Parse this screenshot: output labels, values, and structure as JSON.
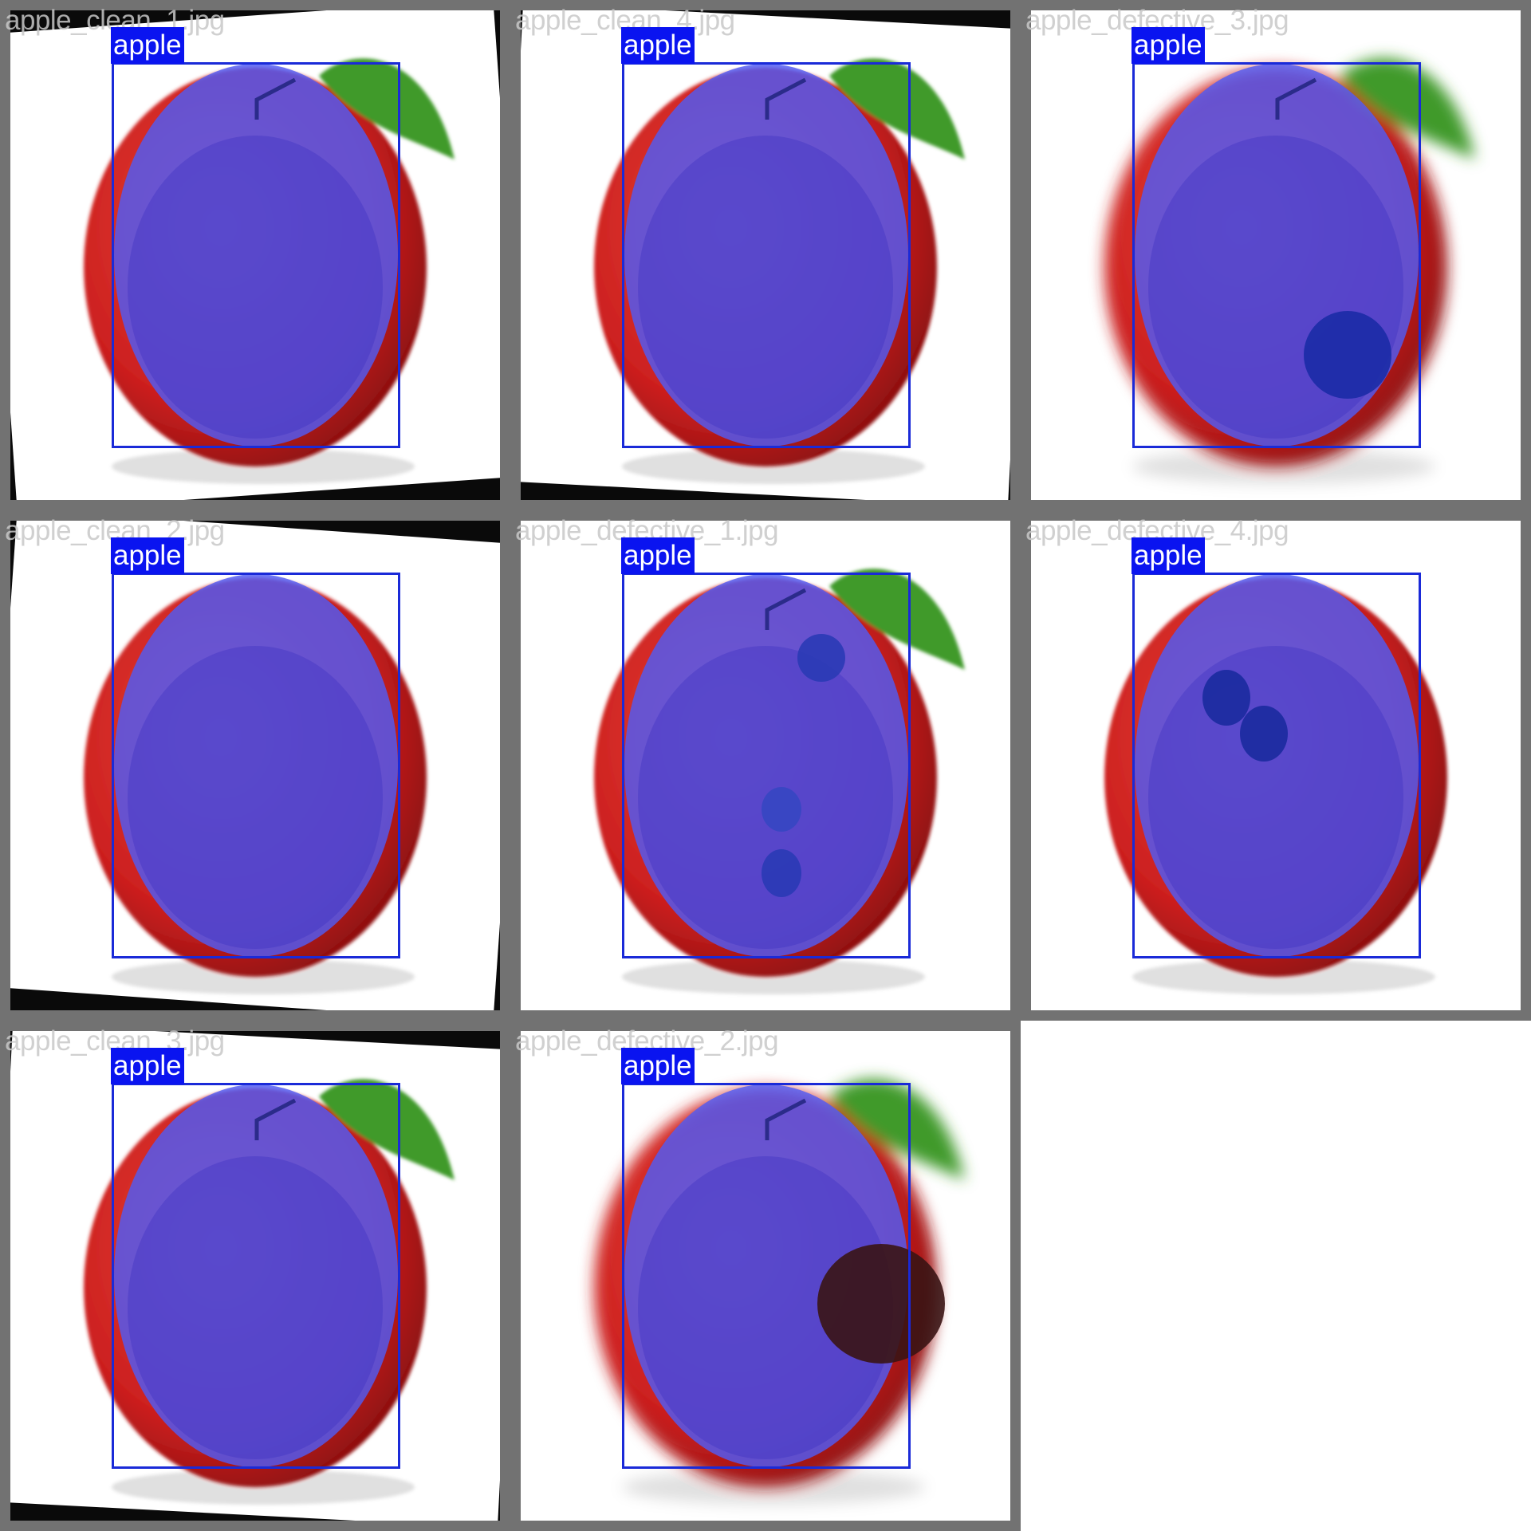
{
  "tiles": [
    {
      "filename": "apple_clean_1.jpg",
      "label": "apple",
      "background": "rotated-white",
      "leaf": "leaf-top-right",
      "blur": "sharp",
      "defect_spots": []
    },
    {
      "filename": "apple_clean_4.jpg",
      "label": "apple",
      "background": "rotated-white",
      "leaf": "leaf-top-right",
      "blur": "sharp",
      "defect_spots": []
    },
    {
      "filename": "apple_defective_3.jpg",
      "label": "apple",
      "background": "white",
      "leaf": "leaf-top-right",
      "blur": "blurred",
      "defect_spots": [
        "bruise-lower-right"
      ]
    },
    {
      "filename": "apple_clean_2.jpg",
      "label": "apple",
      "background": "rotated-white",
      "leaf": "none",
      "blur": "sharp",
      "defect_spots": []
    },
    {
      "filename": "apple_defective_1.jpg",
      "label": "apple",
      "background": "white",
      "leaf": "leaf-top-right",
      "blur": "sharp",
      "defect_spots": [
        "spot-upper-right",
        "spot-center",
        "spot-lower-center"
      ]
    },
    {
      "filename": "apple_defective_4.jpg",
      "label": "apple",
      "background": "white",
      "leaf": "none",
      "blur": "sharp",
      "defect_spots": [
        "bruise-upper-left"
      ]
    },
    {
      "filename": "apple_clean_3.jpg",
      "label": "apple",
      "background": "rotated-white",
      "leaf": "leaf-top-right",
      "blur": "sharp",
      "defect_spots": []
    },
    {
      "filename": "apple_defective_2.jpg",
      "label": "apple",
      "background": "white",
      "leaf": "leaf-top-right",
      "blur": "blurred",
      "defect_spots": [
        "dark-rot-right"
      ]
    }
  ],
  "colors": {
    "tile_border": "#727272",
    "mask": "#4f5cf5",
    "bbox": "#1a2ad8",
    "label_bg": "#0a14f0",
    "label_text": "#ffffff",
    "apple_red": "#cc1f1f",
    "leaf_green": "#3f9a2c"
  }
}
